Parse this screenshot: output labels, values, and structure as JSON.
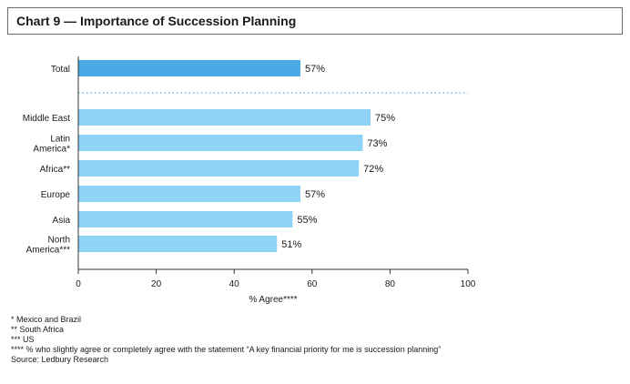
{
  "chart_data": {
    "type": "bar",
    "orientation": "horizontal",
    "title": "Chart 9 — Importance of Succession Planning",
    "xlabel": "% Agree****",
    "xlim": [
      0,
      100
    ],
    "xticks": [
      0,
      20,
      40,
      60,
      80,
      100
    ],
    "categories": [
      "Total",
      "Middle East",
      "Latin America*",
      "Africa**",
      "Europe",
      "Asia",
      "North America***"
    ],
    "category_lines": [
      [
        "Total"
      ],
      [
        "Middle East"
      ],
      [
        "Latin",
        "America*"
      ],
      [
        "Africa**"
      ],
      [
        "Europe"
      ],
      [
        "Asia"
      ],
      [
        "North",
        "America***"
      ]
    ],
    "values": [
      57,
      75,
      73,
      72,
      57,
      55,
      51
    ],
    "value_labels": [
      "57%",
      "75%",
      "73%",
      "72%",
      "57%",
      "55%",
      "51%"
    ],
    "colors": {
      "total": "#4aaae6",
      "regions": "#8fd3f6",
      "separator": "#5bbde6",
      "axis": "#333333"
    },
    "separator_after": "Total",
    "grid": false,
    "legend": "none"
  },
  "notes": [
    "* Mexico and Brazil",
    "** South Africa",
    "*** US",
    "**** % who slightly agree or completely agree with the statement “A key financial priority for me is succession planning”",
    "Source: Ledbury Research"
  ]
}
